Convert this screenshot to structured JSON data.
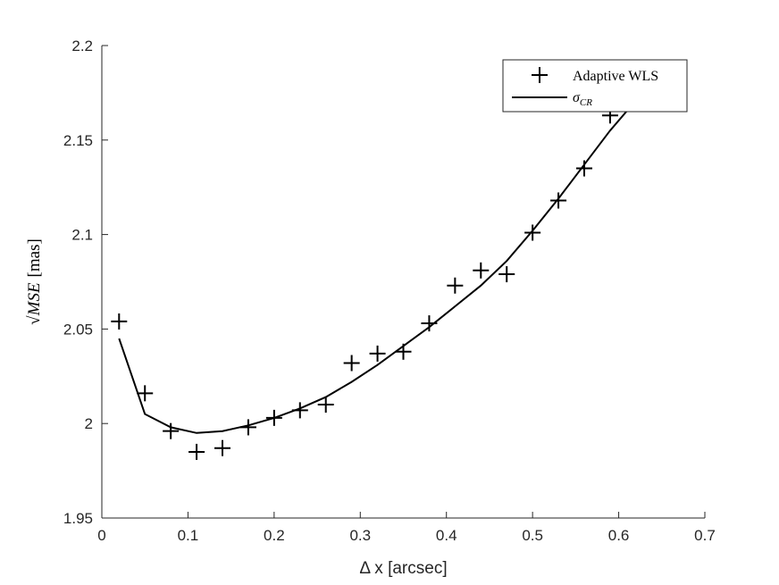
{
  "chart_data": {
    "type": "line",
    "title": "",
    "xlabel": "Δ x [arcsec]",
    "ylabel": "√MSE [mas]",
    "ylabel_math": "MSE",
    "ylabel_unit": "[mas]",
    "xlim": [
      0,
      0.7
    ],
    "ylim": [
      1.95,
      2.2
    ],
    "xticks": [
      0,
      0.1,
      0.2,
      0.3,
      0.4,
      0.5,
      0.6,
      0.7
    ],
    "xtick_labels": [
      "0",
      "0.1",
      "0.2",
      "0.3",
      "0.4",
      "0.5",
      "0.6",
      "0.7"
    ],
    "yticks": [
      1.95,
      2.0,
      2.05,
      2.1,
      2.15,
      2.2
    ],
    "ytick_labels": [
      "1.95",
      "2",
      "2.05",
      "2.1",
      "2.15",
      "2.2"
    ],
    "grid": false,
    "legend_position": "top-right",
    "series": [
      {
        "name": "Adaptive WLS",
        "kind": "scatter",
        "marker": "plus",
        "color": "#000000",
        "x": [
          0.02,
          0.05,
          0.08,
          0.11,
          0.14,
          0.17,
          0.2,
          0.23,
          0.26,
          0.29,
          0.32,
          0.35,
          0.38,
          0.41,
          0.44,
          0.47,
          0.5,
          0.53,
          0.56,
          0.59
        ],
        "y": [
          2.054,
          2.016,
          1.996,
          1.985,
          1.987,
          1.998,
          2.003,
          2.007,
          2.01,
          2.032,
          2.037,
          2.038,
          2.053,
          2.073,
          2.081,
          2.079,
          2.101,
          2.118,
          2.135,
          2.163
        ]
      },
      {
        "name": "σ_CR",
        "name_main": "σ",
        "name_sub": "CR",
        "kind": "line",
        "color": "#000000",
        "x": [
          0.02,
          0.05,
          0.08,
          0.11,
          0.14,
          0.17,
          0.2,
          0.23,
          0.26,
          0.29,
          0.32,
          0.35,
          0.38,
          0.41,
          0.44,
          0.47,
          0.5,
          0.53,
          0.56,
          0.59,
          0.62
        ],
        "y": [
          2.045,
          2.005,
          1.998,
          1.995,
          1.996,
          1.999,
          2.003,
          2.008,
          2.014,
          2.022,
          2.031,
          2.041,
          2.051,
          2.062,
          2.073,
          2.086,
          2.102,
          2.119,
          2.137,
          2.155,
          2.171
        ]
      }
    ]
  }
}
